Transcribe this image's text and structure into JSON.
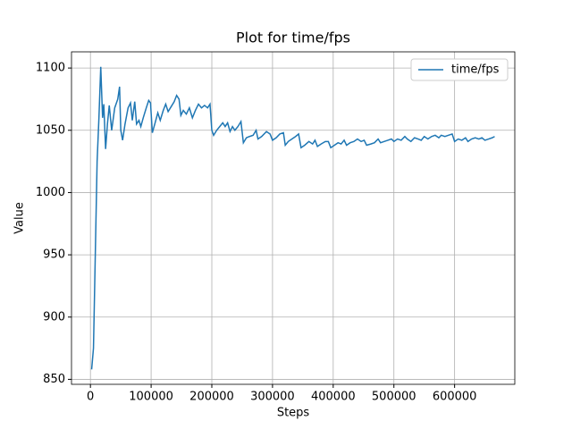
{
  "chart_data": {
    "type": "line",
    "title": "Plot for time/fps",
    "x_label": "Steps",
    "y_label": "Value",
    "x": [
      2000,
      5000,
      8000,
      11000,
      14000,
      17000,
      20000,
      22000,
      25000,
      28000,
      31000,
      35000,
      40000,
      45000,
      48000,
      50000,
      53000,
      57000,
      62000,
      66000,
      69000,
      73000,
      76000,
      80000,
      83000,
      87000,
      92000,
      96000,
      99000,
      102000,
      106000,
      111000,
      115000,
      120000,
      124000,
      128000,
      133000,
      138000,
      142000,
      146000,
      149000,
      153000,
      158000,
      163000,
      168000,
      173000,
      178000,
      183000,
      188000,
      193000,
      197000,
      200000,
      203000,
      208000,
      213000,
      218000,
      222000,
      226000,
      230000,
      234000,
      238000,
      243000,
      248000,
      252000,
      257000,
      262000,
      268000,
      273000,
      276000,
      282000,
      290000,
      296000,
      300000,
      306000,
      312000,
      318000,
      321000,
      326000,
      332000,
      338000,
      343000,
      347000,
      353000,
      360000,
      366000,
      370000,
      374000,
      380000,
      387000,
      392000,
      396000,
      402000,
      408000,
      413000,
      418000,
      422000,
      428000,
      434000,
      440000,
      446000,
      451000,
      455000,
      462000,
      468000,
      474000,
      478000,
      484000,
      490000,
      496000,
      500000,
      506000,
      512000,
      518000,
      522000,
      528000,
      534000,
      540000,
      545000,
      550000,
      556000,
      562000,
      568000,
      574000,
      578000,
      584000,
      590000,
      596000,
      600000,
      606000,
      612000,
      618000,
      622000,
      628000,
      634000,
      640000,
      645000,
      650000,
      656000,
      662000,
      666000
    ],
    "series": [
      {
        "name": "time/fps",
        "color": "#1f77b4",
        "values": [
          858,
          875,
          950,
          1025,
          1060,
          1101,
          1060,
          1071,
          1035,
          1055,
          1070,
          1050,
          1068,
          1075,
          1085,
          1050,
          1042,
          1055,
          1068,
          1072,
          1058,
          1073,
          1055,
          1058,
          1053,
          1060,
          1068,
          1074,
          1072,
          1048,
          1055,
          1064,
          1058,
          1066,
          1071,
          1065,
          1069,
          1073,
          1078,
          1075,
          1062,
          1066,
          1063,
          1068,
          1060,
          1066,
          1071,
          1068,
          1070,
          1068,
          1071,
          1050,
          1046,
          1050,
          1053,
          1056,
          1053,
          1056,
          1049,
          1053,
          1050,
          1053,
          1057,
          1040,
          1044,
          1045,
          1046,
          1050,
          1043,
          1045,
          1049,
          1047,
          1042,
          1044,
          1047,
          1048,
          1038,
          1041,
          1043,
          1045,
          1047,
          1036,
          1038,
          1041,
          1039,
          1042,
          1037,
          1039,
          1041,
          1041,
          1036,
          1038,
          1040,
          1039,
          1042,
          1038,
          1040,
          1041,
          1043,
          1041,
          1042,
          1038,
          1039,
          1040,
          1043,
          1040,
          1041,
          1042,
          1043,
          1041,
          1043,
          1042,
          1045,
          1043,
          1041,
          1044,
          1043,
          1042,
          1045,
          1043,
          1045,
          1046,
          1044,
          1046,
          1045,
          1046,
          1047,
          1041,
          1043,
          1042,
          1044,
          1041,
          1043,
          1044,
          1043,
          1044,
          1042,
          1043,
          1044,
          1045
        ]
      }
    ],
    "xlim": [
      -31200,
      699200
    ],
    "xticks": [
      0,
      100000,
      200000,
      300000,
      400000,
      500000,
      600000
    ],
    "ylim": [
      846,
      1113
    ],
    "yticks": [
      850,
      900,
      950,
      1000,
      1050,
      1100
    ],
    "grid": true,
    "legend": "upper right"
  }
}
